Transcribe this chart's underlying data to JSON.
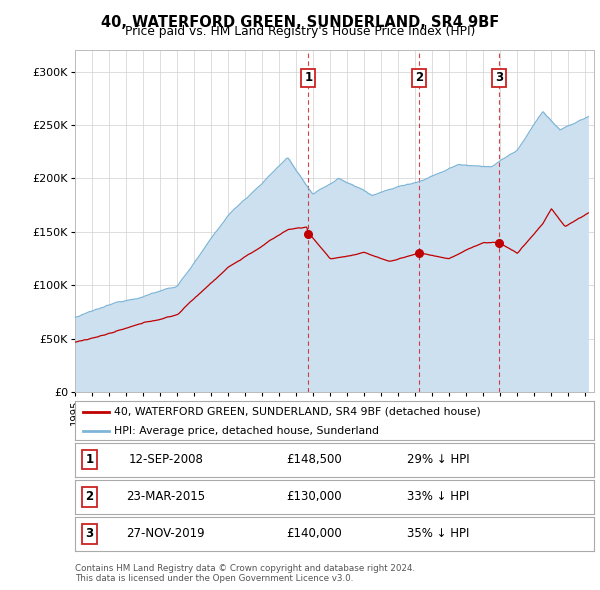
{
  "title": "40, WATERFORD GREEN, SUNDERLAND, SR4 9BF",
  "subtitle": "Price paid vs. HM Land Registry's House Price Index (HPI)",
  "ylim": [
    0,
    320000
  ],
  "yticks": [
    0,
    50000,
    100000,
    150000,
    200000,
    250000,
    300000
  ],
  "ytick_labels": [
    "£0",
    "£50K",
    "£100K",
    "£150K",
    "£200K",
    "£250K",
    "£300K"
  ],
  "background_color": "#ffffff",
  "plot_bg_color": "#ffffff",
  "grid_color": "#d0d0d0",
  "hpi_color": "#7eb5d6",
  "hpi_fill_color": "#cce0f0",
  "price_color": "#c00000",
  "transactions": [
    {
      "label": "1",
      "date_x": 2008.71,
      "price": 148500
    },
    {
      "label": "2",
      "date_x": 2015.22,
      "price": 130000
    },
    {
      "label": "3",
      "date_x": 2019.91,
      "price": 140000
    }
  ],
  "legend_line1": "40, WATERFORD GREEN, SUNDERLAND, SR4 9BF (detached house)",
  "legend_line2": "HPI: Average price, detached house, Sunderland",
  "table_rows": [
    [
      "1",
      "12-SEP-2008",
      "£148,500",
      "29% ↓ HPI"
    ],
    [
      "2",
      "23-MAR-2015",
      "£130,000",
      "33% ↓ HPI"
    ],
    [
      "3",
      "27-NOV-2019",
      "£140,000",
      "35% ↓ HPI"
    ]
  ],
  "footer": "Contains HM Land Registry data © Crown copyright and database right 2024.\nThis data is licensed under the Open Government Licence v3.0.",
  "xmin": 1995.0,
  "xmax": 2025.5
}
